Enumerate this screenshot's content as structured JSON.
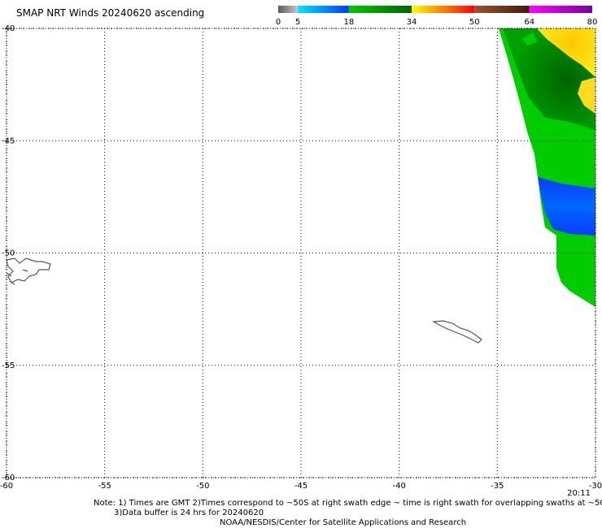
{
  "title": "SMAP NRT Winds 20240620 ascending",
  "colorbar": {
    "ticks": [
      "0",
      "5",
      "18",
      "34",
      "50",
      "64",
      "80"
    ],
    "tick_values": [
      0,
      5,
      18,
      34,
      50,
      64,
      80
    ],
    "segments": [
      {
        "from": 0,
        "to": 5,
        "color": "#5a5a5a",
        "color2": "#c8c8c8"
      },
      {
        "from": 5,
        "to": 18,
        "color": "#00e6ff",
        "color2": "#0038ff"
      },
      {
        "from": 18,
        "to": 34,
        "color": "#00c800",
        "color2": "#006400"
      },
      {
        "from": 34,
        "to": 50,
        "color": "#ffff00",
        "color2": "#ff0000"
      },
      {
        "from": 50,
        "to": 64,
        "color": "#a0522d",
        "color2": "#3c1e0f"
      },
      {
        "from": 64,
        "to": 80,
        "color": "#ff00ff",
        "color2": "#7a00a0"
      }
    ]
  },
  "map": {
    "lon_range": [
      -60,
      -30
    ],
    "lat_range": [
      -60,
      -40
    ],
    "lon_ticks": [
      "-60",
      "-55",
      "-50",
      "-45",
      "-40",
      "-35",
      "-30"
    ],
    "lon_tick_values": [
      -60,
      -55,
      -50,
      -45,
      -40,
      -35,
      -30
    ],
    "lat_ticks": [
      "-40",
      "-45",
      "-50",
      "-55",
      "-60"
    ],
    "lat_tick_values": [
      -40,
      -45,
      -50,
      -55,
      -60
    ],
    "grid": "dotted",
    "swath_time": "20:11",
    "wind_regions": [
      {
        "name": "green-swath",
        "color": "#00c800"
      },
      {
        "name": "dark-green-core",
        "color": "#007800"
      },
      {
        "name": "yellow-high-wind",
        "color": "#ffd200"
      },
      {
        "name": "blue-low-wind",
        "color": "#0040ff"
      }
    ],
    "land": [
      "Falkland Islands",
      "South Georgia"
    ]
  },
  "notes": {
    "line1": "Note: 1) Times are GMT 2)Times correspond to ~50S at right swath edge ~ time is right swath for overlapping swaths at ~50S",
    "line2": "3)Data buffer is 24 hrs for 20240620",
    "line3": "NOAA/NESDIS/Center for Satellite Applications and Research"
  }
}
